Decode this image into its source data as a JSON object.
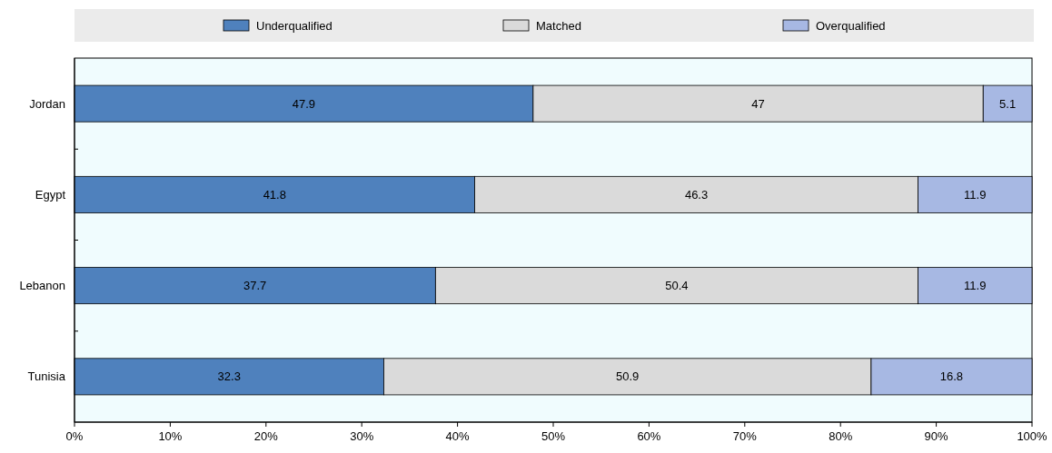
{
  "chart_data": {
    "type": "bar",
    "orientation": "horizontal",
    "stacked": true,
    "categories": [
      "Jordan",
      "Egypt",
      "Lebanon",
      "Tunisia"
    ],
    "series": [
      {
        "name": "Underqualified",
        "color": "#4f81bd",
        "values": [
          47.9,
          41.8,
          37.7,
          32.3
        ]
      },
      {
        "name": "Matched",
        "color": "#dadada",
        "values": [
          47,
          46.3,
          50.4,
          50.9
        ]
      },
      {
        "name": "Overqualified",
        "color": "#a7b8e3",
        "values": [
          5.1,
          11.9,
          11.9,
          16.8
        ]
      }
    ],
    "xlim": [
      0,
      100
    ],
    "xticks": [
      {
        "value": 0,
        "label": "0%"
      },
      {
        "value": 10,
        "label": "10%"
      },
      {
        "value": 20,
        "label": "20%"
      },
      {
        "value": 30,
        "label": "30%"
      },
      {
        "value": 40,
        "label": "40%"
      },
      {
        "value": 50,
        "label": "50%"
      },
      {
        "value": 60,
        "label": "60%"
      },
      {
        "value": 70,
        "label": "70%"
      },
      {
        "value": 80,
        "label": "80%"
      },
      {
        "value": 90,
        "label": "90%"
      },
      {
        "value": 100,
        "label": "100%"
      }
    ],
    "data_labels": true,
    "legend": "top",
    "grid": false
  }
}
